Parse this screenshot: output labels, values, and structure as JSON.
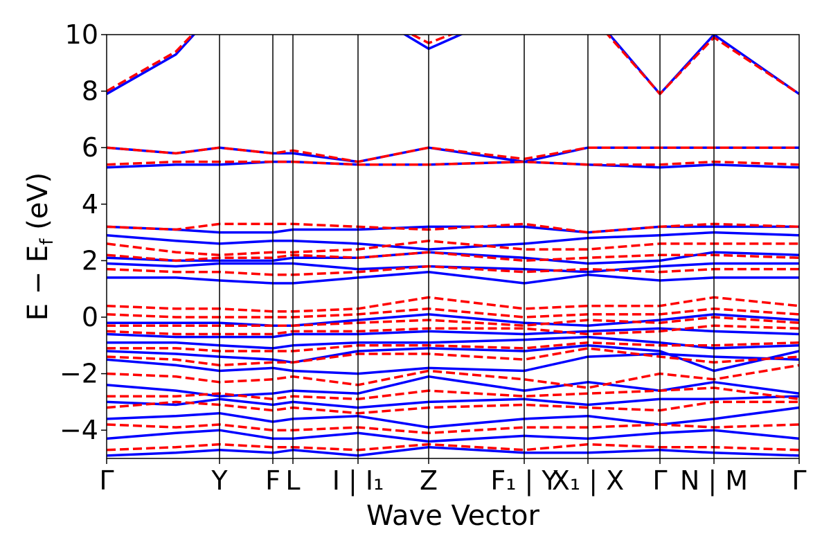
{
  "chart_data": {
    "type": "line",
    "title": "",
    "xlabel": "Wave Vector",
    "ylabel": "E − E_f (eV)",
    "ylabel_main": "E − E",
    "ylabel_sub": "f",
    "ylabel_tail": " (eV)",
    "ylim": [
      -5,
      10
    ],
    "yticks": [
      -4,
      -2,
      0,
      2,
      4,
      6,
      8,
      10
    ],
    "ytick_labels": [
      "−4",
      "−2",
      "0",
      "2",
      "4",
      "6",
      "8",
      "10"
    ],
    "xlim": [
      0,
      1
    ],
    "kpoints": [
      {
        "x": 0.0,
        "label": "Γ",
        "line": false
      },
      {
        "x": 0.163,
        "label": "Y",
        "line": true
      },
      {
        "x": 0.24,
        "label": "F",
        "line": true
      },
      {
        "x": 0.269,
        "label": "L",
        "line": true
      },
      {
        "x": 0.363,
        "label": "I | I₁",
        "line": true
      },
      {
        "x": 0.465,
        "label": "Z",
        "line": true
      },
      {
        "x": 0.603,
        "label": "F₁ | Y",
        "line": true
      },
      {
        "x": 0.695,
        "label": "X₁ | X",
        "line": true
      },
      {
        "x": 0.799,
        "label": "Γ",
        "line": true
      },
      {
        "x": 0.877,
        "label": "N | M",
        "line": true
      },
      {
        "x": 1.0,
        "label": "Γ",
        "line": false
      }
    ],
    "grid": false,
    "legend": "none",
    "colors": {
      "series_a": "#0000ff",
      "series_b": "#ff0000"
    },
    "series": [
      {
        "style": "solid",
        "color": "#0000ff",
        "x": [
          0.0,
          0.1,
          0.163,
          0.24,
          0.269,
          0.363,
          0.465,
          0.603,
          0.695,
          0.799,
          0.877,
          1.0
        ],
        "bands": [
          [
            -4.9,
            -4.8,
            -4.7,
            -4.8,
            -4.7,
            -4.9,
            -4.6,
            -4.8,
            -4.8,
            -4.7,
            -4.8,
            -4.9
          ],
          [
            -4.3,
            -4.1,
            -4.0,
            -4.3,
            -4.3,
            -4.1,
            -4.4,
            -4.2,
            -4.3,
            -4.1,
            -4.0,
            -4.3
          ],
          [
            -3.6,
            -3.5,
            -3.4,
            -3.7,
            -3.6,
            -3.5,
            -3.9,
            -3.6,
            -3.5,
            -3.8,
            -3.6,
            -3.2
          ],
          [
            -3.0,
            -3.1,
            -2.9,
            -3.1,
            -3.0,
            -3.2,
            -3.0,
            -2.9,
            -3.1,
            -2.9,
            -2.9,
            -2.8
          ],
          [
            -2.4,
            -2.6,
            -2.8,
            -2.7,
            -2.6,
            -2.7,
            -2.1,
            -2.6,
            -2.3,
            -2.6,
            -2.3,
            -2.7
          ],
          [
            -1.5,
            -1.7,
            -1.9,
            -1.8,
            -1.9,
            -2.0,
            -1.8,
            -1.9,
            -1.4,
            -1.3,
            -1.4,
            -1.5
          ],
          [
            -1.2,
            -1.3,
            -1.4,
            -1.5,
            -1.6,
            -1.2,
            -1.1,
            -1.2,
            -1.0,
            -1.2,
            -1.9,
            -1.2
          ],
          [
            -0.9,
            -0.9,
            -1.0,
            -1.1,
            -1.0,
            -0.9,
            -0.9,
            -0.8,
            -0.7,
            -0.9,
            -1.1,
            -1.0
          ],
          [
            -0.6,
            -0.7,
            -0.7,
            -0.7,
            -0.6,
            -0.6,
            -0.5,
            -0.6,
            -0.5,
            -0.4,
            -0.5,
            -0.6
          ],
          [
            -0.2,
            -0.2,
            -0.2,
            -0.3,
            -0.3,
            -0.1,
            0.1,
            -0.2,
            -0.3,
            -0.1,
            0.1,
            -0.1
          ],
          [
            1.4,
            1.4,
            1.3,
            1.2,
            1.2,
            1.4,
            1.6,
            1.2,
            1.5,
            1.3,
            1.4,
            1.4
          ],
          [
            1.9,
            1.8,
            1.9,
            1.9,
            1.9,
            1.7,
            1.8,
            1.7,
            1.6,
            1.8,
            1.9,
            1.9
          ],
          [
            2.1,
            2.0,
            2.0,
            2.0,
            2.1,
            2.1,
            2.3,
            2.1,
            1.9,
            2.0,
            2.3,
            2.2
          ],
          [
            2.9,
            2.7,
            2.6,
            2.7,
            2.7,
            2.6,
            2.4,
            2.6,
            2.8,
            2.9,
            3.0,
            2.9
          ],
          [
            3.2,
            3.1,
            3.0,
            3.0,
            3.1,
            3.1,
            3.2,
            3.2,
            3.0,
            3.2,
            3.2,
            3.2
          ],
          [
            5.3,
            5.4,
            5.4,
            5.5,
            5.5,
            5.4,
            5.4,
            5.5,
            5.4,
            5.3,
            5.4,
            5.3
          ],
          [
            6.0,
            5.8,
            6.0,
            5.8,
            5.8,
            5.5,
            6.0,
            5.5,
            6.0,
            6.0,
            6.0,
            6.0
          ],
          [
            7.9,
            9.3,
            11.0,
            11.0,
            11.0,
            11.0,
            9.5,
            11.0,
            10.9,
            7.9,
            10.0,
            7.9
          ]
        ]
      },
      {
        "style": "dashed",
        "color": "#ff0000",
        "x": [
          0.0,
          0.1,
          0.163,
          0.24,
          0.269,
          0.363,
          0.465,
          0.603,
          0.695,
          0.799,
          0.877,
          1.0
        ],
        "bands": [
          [
            -4.7,
            -4.6,
            -4.5,
            -4.6,
            -4.6,
            -4.7,
            -4.5,
            -4.7,
            -4.5,
            -4.6,
            -4.6,
            -4.7
          ],
          [
            -3.8,
            -3.9,
            -3.8,
            -4.0,
            -4.0,
            -3.9,
            -4.1,
            -3.9,
            -3.9,
            -3.8,
            -3.9,
            -3.8
          ],
          [
            -3.2,
            -3.0,
            -3.1,
            -3.3,
            -3.2,
            -3.4,
            -3.2,
            -3.1,
            -3.2,
            -3.3,
            -3.0,
            -3.0
          ],
          [
            -2.8,
            -2.8,
            -2.7,
            -2.9,
            -2.8,
            -2.9,
            -2.6,
            -2.8,
            -2.7,
            -2.6,
            -2.5,
            -2.9
          ],
          [
            -2.0,
            -2.1,
            -2.3,
            -2.2,
            -2.1,
            -2.4,
            -1.9,
            -2.2,
            -2.5,
            -2.0,
            -2.2,
            -1.7
          ],
          [
            -1.4,
            -1.5,
            -1.7,
            -1.6,
            -1.6,
            -1.3,
            -1.3,
            -1.5,
            -1.1,
            -1.4,
            -1.6,
            -1.4
          ],
          [
            -1.1,
            -1.1,
            -1.2,
            -1.2,
            -1.2,
            -1.0,
            -1.0,
            -1.1,
            -0.9,
            -1.0,
            -1.0,
            -0.9
          ],
          [
            -0.5,
            -0.6,
            -0.6,
            -0.6,
            -0.5,
            -0.5,
            -0.4,
            -0.4,
            -0.6,
            -0.5,
            -0.3,
            -0.4
          ],
          [
            -0.3,
            -0.3,
            -0.3,
            -0.3,
            -0.3,
            -0.2,
            -0.1,
            -0.3,
            -0.1,
            -0.2,
            0.0,
            -0.2
          ],
          [
            0.1,
            0.0,
            0.0,
            0.0,
            0.0,
            0.1,
            0.3,
            0.0,
            0.1,
            0.1,
            0.3,
            0.1
          ],
          [
            0.4,
            0.3,
            0.3,
            0.2,
            0.2,
            0.3,
            0.7,
            0.3,
            0.4,
            0.4,
            0.7,
            0.4
          ],
          [
            1.7,
            1.6,
            1.6,
            1.5,
            1.5,
            1.6,
            1.8,
            1.6,
            1.7,
            1.6,
            1.7,
            1.7
          ],
          [
            2.2,
            2.0,
            2.1,
            2.1,
            2.2,
            2.1,
            2.3,
            2.0,
            2.1,
            2.2,
            2.2,
            2.1
          ],
          [
            2.6,
            2.3,
            2.2,
            2.3,
            2.3,
            2.4,
            2.7,
            2.4,
            2.4,
            2.6,
            2.6,
            2.6
          ],
          [
            3.2,
            3.1,
            3.3,
            3.3,
            3.3,
            3.2,
            3.1,
            3.3,
            3.0,
            3.2,
            3.3,
            3.2
          ],
          [
            5.4,
            5.5,
            5.5,
            5.5,
            5.5,
            5.4,
            5.4,
            5.5,
            5.4,
            5.4,
            5.5,
            5.4
          ],
          [
            6.0,
            5.8,
            6.0,
            5.8,
            5.9,
            5.5,
            6.0,
            5.6,
            6.0,
            6.0,
            6.0,
            6.0
          ],
          [
            8.0,
            9.4,
            11.0,
            11.0,
            11.0,
            11.0,
            9.7,
            11.0,
            10.8,
            7.9,
            9.9,
            7.9
          ]
        ]
      }
    ]
  }
}
